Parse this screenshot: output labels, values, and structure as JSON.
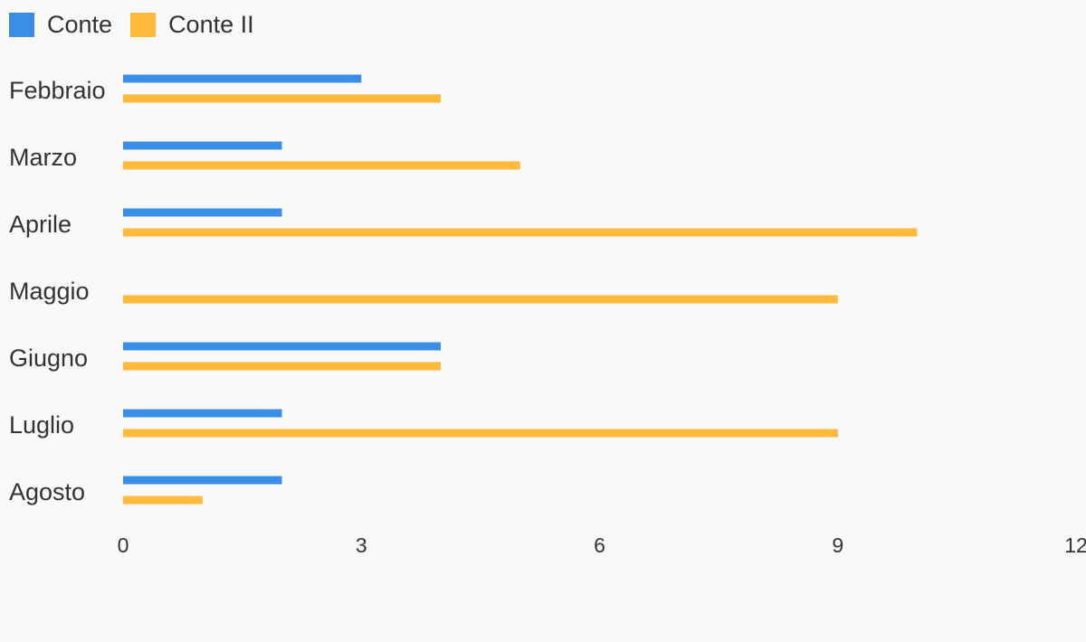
{
  "chart_data": {
    "type": "bar",
    "orientation": "horizontal",
    "title": "",
    "xlabel": "",
    "ylabel": "",
    "categories": [
      "Febbraio",
      "Marzo",
      "Aprile",
      "Maggio",
      "Giugno",
      "Luglio",
      "Agosto"
    ],
    "series": [
      {
        "name": "Conte",
        "color": "#3a8ee8",
        "values": [
          3,
          2,
          2,
          0,
          4,
          2,
          2
        ]
      },
      {
        "name": "Conte II",
        "color": "#ffb93b",
        "values": [
          4,
          5,
          10,
          9,
          4,
          9,
          1
        ]
      }
    ],
    "xlim": [
      0,
      12
    ],
    "xticks": [
      "0",
      "3",
      "6",
      "9",
      "12"
    ],
    "grid": false,
    "legend_position": "top-left"
  }
}
